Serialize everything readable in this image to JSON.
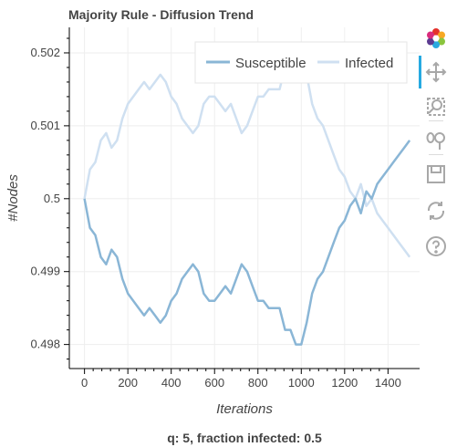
{
  "chart_data": {
    "type": "line",
    "title": "Majority Rule - Diffusion Trend",
    "subtitle": "q: 5, fraction infected: 0.5",
    "xlabel": "Iterations",
    "ylabel": "#Nodes",
    "xlim": [
      -70,
      1550
    ],
    "ylim": [
      0.49767,
      0.50235
    ],
    "x_ticks": [
      0,
      200,
      400,
      600,
      800,
      1000,
      1200,
      1400
    ],
    "y_ticks": [
      0.498,
      0.499,
      0.5,
      0.501,
      0.502
    ],
    "y_tick_labels": [
      "0.498",
      "0.499",
      "0.5",
      "0.501",
      "0.502"
    ],
    "grid": true,
    "legend_position": "top-right",
    "series": [
      {
        "name": "Susceptible",
        "color": "#8ab6d6",
        "points": [
          [
            0,
            0.5
          ],
          [
            25,
            0.4996
          ],
          [
            50,
            0.4995
          ],
          [
            75,
            0.4992
          ],
          [
            100,
            0.4991
          ],
          [
            125,
            0.4993
          ],
          [
            150,
            0.4992
          ],
          [
            175,
            0.4989
          ],
          [
            200,
            0.4987
          ],
          [
            225,
            0.4986
          ],
          [
            250,
            0.4985
          ],
          [
            275,
            0.4984
          ],
          [
            300,
            0.4985
          ],
          [
            325,
            0.4984
          ],
          [
            350,
            0.4983
          ],
          [
            375,
            0.4984
          ],
          [
            400,
            0.4986
          ],
          [
            425,
            0.4987
          ],
          [
            450,
            0.4989
          ],
          [
            475,
            0.499
          ],
          [
            500,
            0.4991
          ],
          [
            525,
            0.499
          ],
          [
            550,
            0.4987
          ],
          [
            575,
            0.4986
          ],
          [
            600,
            0.4986
          ],
          [
            625,
            0.4987
          ],
          [
            650,
            0.4988
          ],
          [
            675,
            0.4987
          ],
          [
            700,
            0.4989
          ],
          [
            725,
            0.4991
          ],
          [
            750,
            0.499
          ],
          [
            775,
            0.4988
          ],
          [
            800,
            0.4986
          ],
          [
            825,
            0.4986
          ],
          [
            850,
            0.4985
          ],
          [
            875,
            0.4985
          ],
          [
            900,
            0.4985
          ],
          [
            925,
            0.4982
          ],
          [
            950,
            0.4982
          ],
          [
            975,
            0.498
          ],
          [
            1000,
            0.498
          ],
          [
            1025,
            0.4983
          ],
          [
            1050,
            0.4987
          ],
          [
            1075,
            0.4989
          ],
          [
            1100,
            0.499
          ],
          [
            1125,
            0.4992
          ],
          [
            1150,
            0.4994
          ],
          [
            1175,
            0.4996
          ],
          [
            1200,
            0.4997
          ],
          [
            1225,
            0.4999
          ],
          [
            1250,
            0.5
          ],
          [
            1275,
            0.4998
          ],
          [
            1300,
            0.5001
          ],
          [
            1325,
            0.5
          ],
          [
            1350,
            0.5002
          ],
          [
            1375,
            0.5003
          ],
          [
            1400,
            0.5004
          ],
          [
            1425,
            0.5005
          ],
          [
            1450,
            0.5006
          ],
          [
            1475,
            0.5007
          ],
          [
            1500,
            0.5008
          ]
        ]
      },
      {
        "name": "Infected",
        "color": "#cfe0f1",
        "points": [
          [
            0,
            0.5
          ],
          [
            25,
            0.5004
          ],
          [
            50,
            0.5005
          ],
          [
            75,
            0.5008
          ],
          [
            100,
            0.5009
          ],
          [
            125,
            0.5007
          ],
          [
            150,
            0.5008
          ],
          [
            175,
            0.5011
          ],
          [
            200,
            0.5013
          ],
          [
            225,
            0.5014
          ],
          [
            250,
            0.5015
          ],
          [
            275,
            0.5016
          ],
          [
            300,
            0.5015
          ],
          [
            325,
            0.5016
          ],
          [
            350,
            0.5017
          ],
          [
            375,
            0.5016
          ],
          [
            400,
            0.5014
          ],
          [
            425,
            0.5013
          ],
          [
            450,
            0.5011
          ],
          [
            475,
            0.501
          ],
          [
            500,
            0.5009
          ],
          [
            525,
            0.501
          ],
          [
            550,
            0.5013
          ],
          [
            575,
            0.5014
          ],
          [
            600,
            0.5014
          ],
          [
            625,
            0.5013
          ],
          [
            650,
            0.5012
          ],
          [
            675,
            0.5013
          ],
          [
            700,
            0.5011
          ],
          [
            725,
            0.5009
          ],
          [
            750,
            0.501
          ],
          [
            775,
            0.5012
          ],
          [
            800,
            0.5014
          ],
          [
            825,
            0.5014
          ],
          [
            850,
            0.5015
          ],
          [
            875,
            0.5015
          ],
          [
            900,
            0.5015
          ],
          [
            925,
            0.5018
          ],
          [
            950,
            0.5018
          ],
          [
            975,
            0.502
          ],
          [
            1000,
            0.502
          ],
          [
            1025,
            0.5017
          ],
          [
            1050,
            0.5013
          ],
          [
            1075,
            0.5011
          ],
          [
            1100,
            0.501
          ],
          [
            1125,
            0.5008
          ],
          [
            1150,
            0.5006
          ],
          [
            1175,
            0.5004
          ],
          [
            1200,
            0.5003
          ],
          [
            1225,
            0.5001
          ],
          [
            1250,
            0.5
          ],
          [
            1275,
            0.5002
          ],
          [
            1300,
            0.4999
          ],
          [
            1325,
            0.5
          ],
          [
            1350,
            0.4998
          ],
          [
            1375,
            0.4997
          ],
          [
            1400,
            0.4996
          ],
          [
            1425,
            0.4995
          ],
          [
            1450,
            0.4994
          ],
          [
            1475,
            0.4993
          ],
          [
            1500,
            0.4992
          ]
        ]
      }
    ]
  },
  "toolbar": {
    "tools": [
      "bokeh-logo-icon",
      "pan-icon",
      "box-zoom-icon",
      "wheel-zoom-icon",
      "save-icon",
      "reset-icon",
      "help-icon"
    ],
    "active_tool": "pan-icon"
  }
}
